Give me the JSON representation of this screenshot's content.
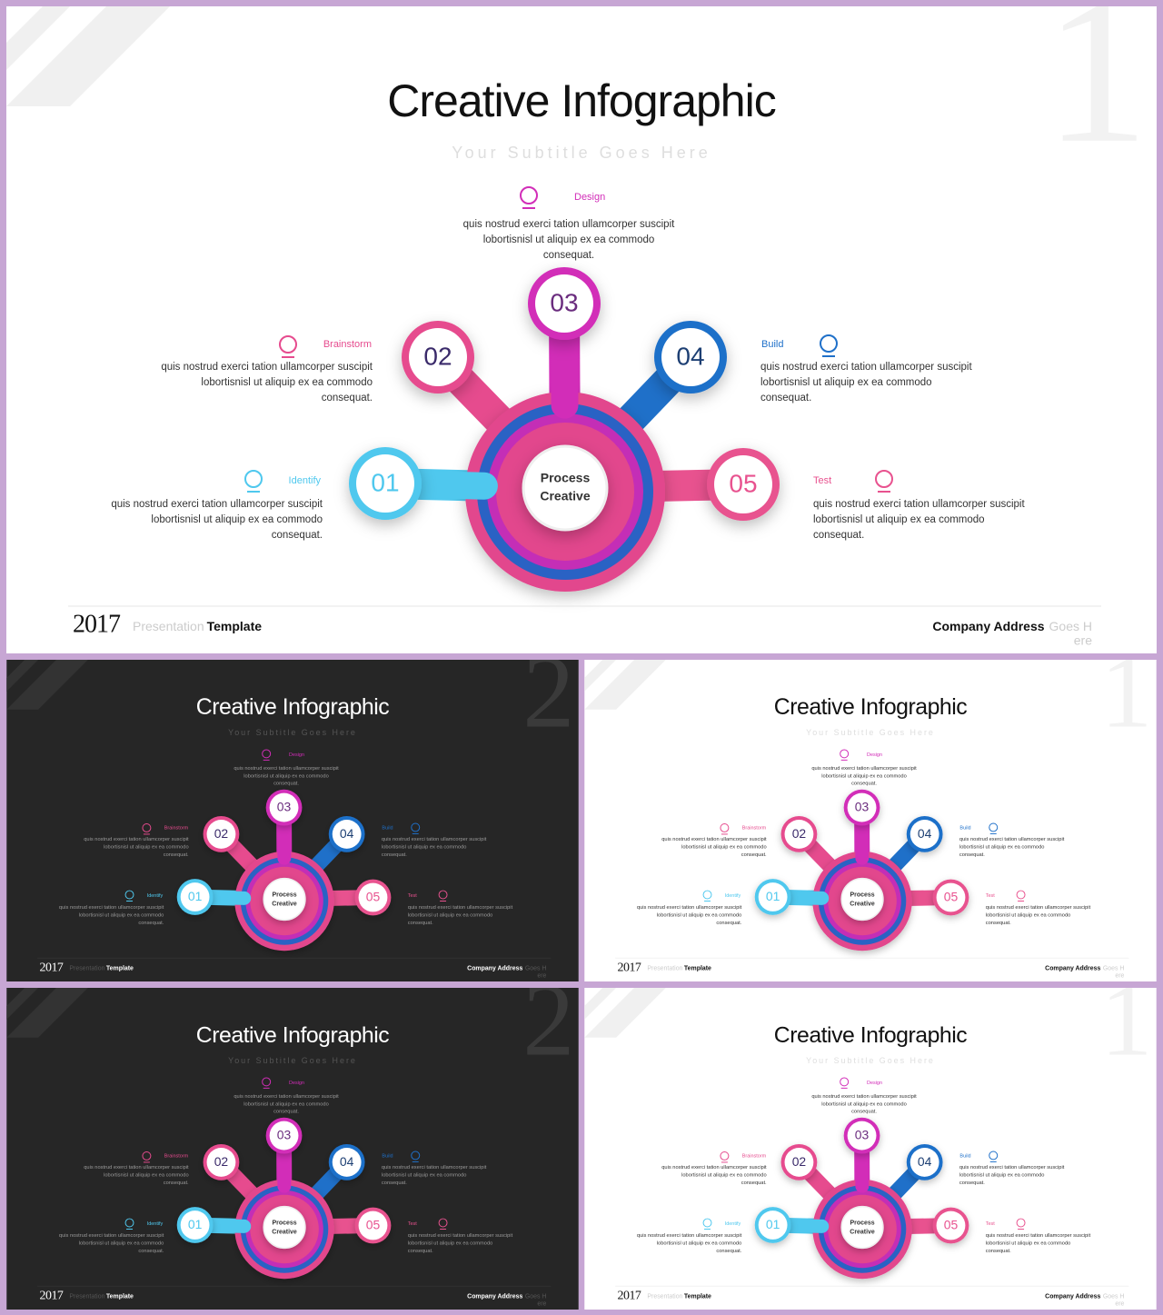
{
  "slide": {
    "title": "Creative Infographic",
    "subtitle": "Your Subtitle Goes Here",
    "center": [
      "Process",
      "Creative"
    ],
    "steps": [
      {
        "number": "01",
        "label": "Identify",
        "color": "#4fc8ee",
        "text": [
          "quis nostrud exerci tation ullamcorper suscipit",
          "lobortisnisl ut aliquip ex ea commodo",
          "consequat."
        ]
      },
      {
        "number": "02",
        "label": "Brainstorm",
        "color": "#e64b8e",
        "text": [
          "quis nostrud exerci tation ullamcorper suscipit",
          "lobortisnisl ut aliquip ex ea commodo",
          "consequat."
        ]
      },
      {
        "number": "03",
        "label": "Design",
        "color": "#d22db8",
        "text": [
          "quis nostrud exerci tation ullamcorper suscipit",
          "lobortisnisl ut aliquip ex ea commodo",
          "consequat."
        ]
      },
      {
        "number": "04",
        "label": "Build",
        "color": "#1f70c9",
        "text": [
          "quis nostrud exerci tation ullamcorper suscipit",
          "lobortisnisl ut aliquip ex ea commodo",
          "consequat."
        ]
      },
      {
        "number": "05",
        "label": "Test",
        "color": "#e8528f",
        "text": [
          "quis nostrud exerci tation ullamcorper suscipit",
          "lobortisnisl ut aliquip ex ea commodo",
          "consequat."
        ]
      }
    ],
    "footer": {
      "year": "2017",
      "presentation": "Presentation",
      "template": "Template",
      "company": "Company Address",
      "company_rest": "Goes H",
      "company_wrap": "ere"
    }
  },
  "slides": [
    {
      "theme": "light",
      "number": "1"
    },
    {
      "theme": "dark",
      "number": "2"
    },
    {
      "theme": "light",
      "number": "1"
    },
    {
      "theme": "dark",
      "number": "2"
    },
    {
      "theme": "light",
      "number": "1"
    }
  ]
}
